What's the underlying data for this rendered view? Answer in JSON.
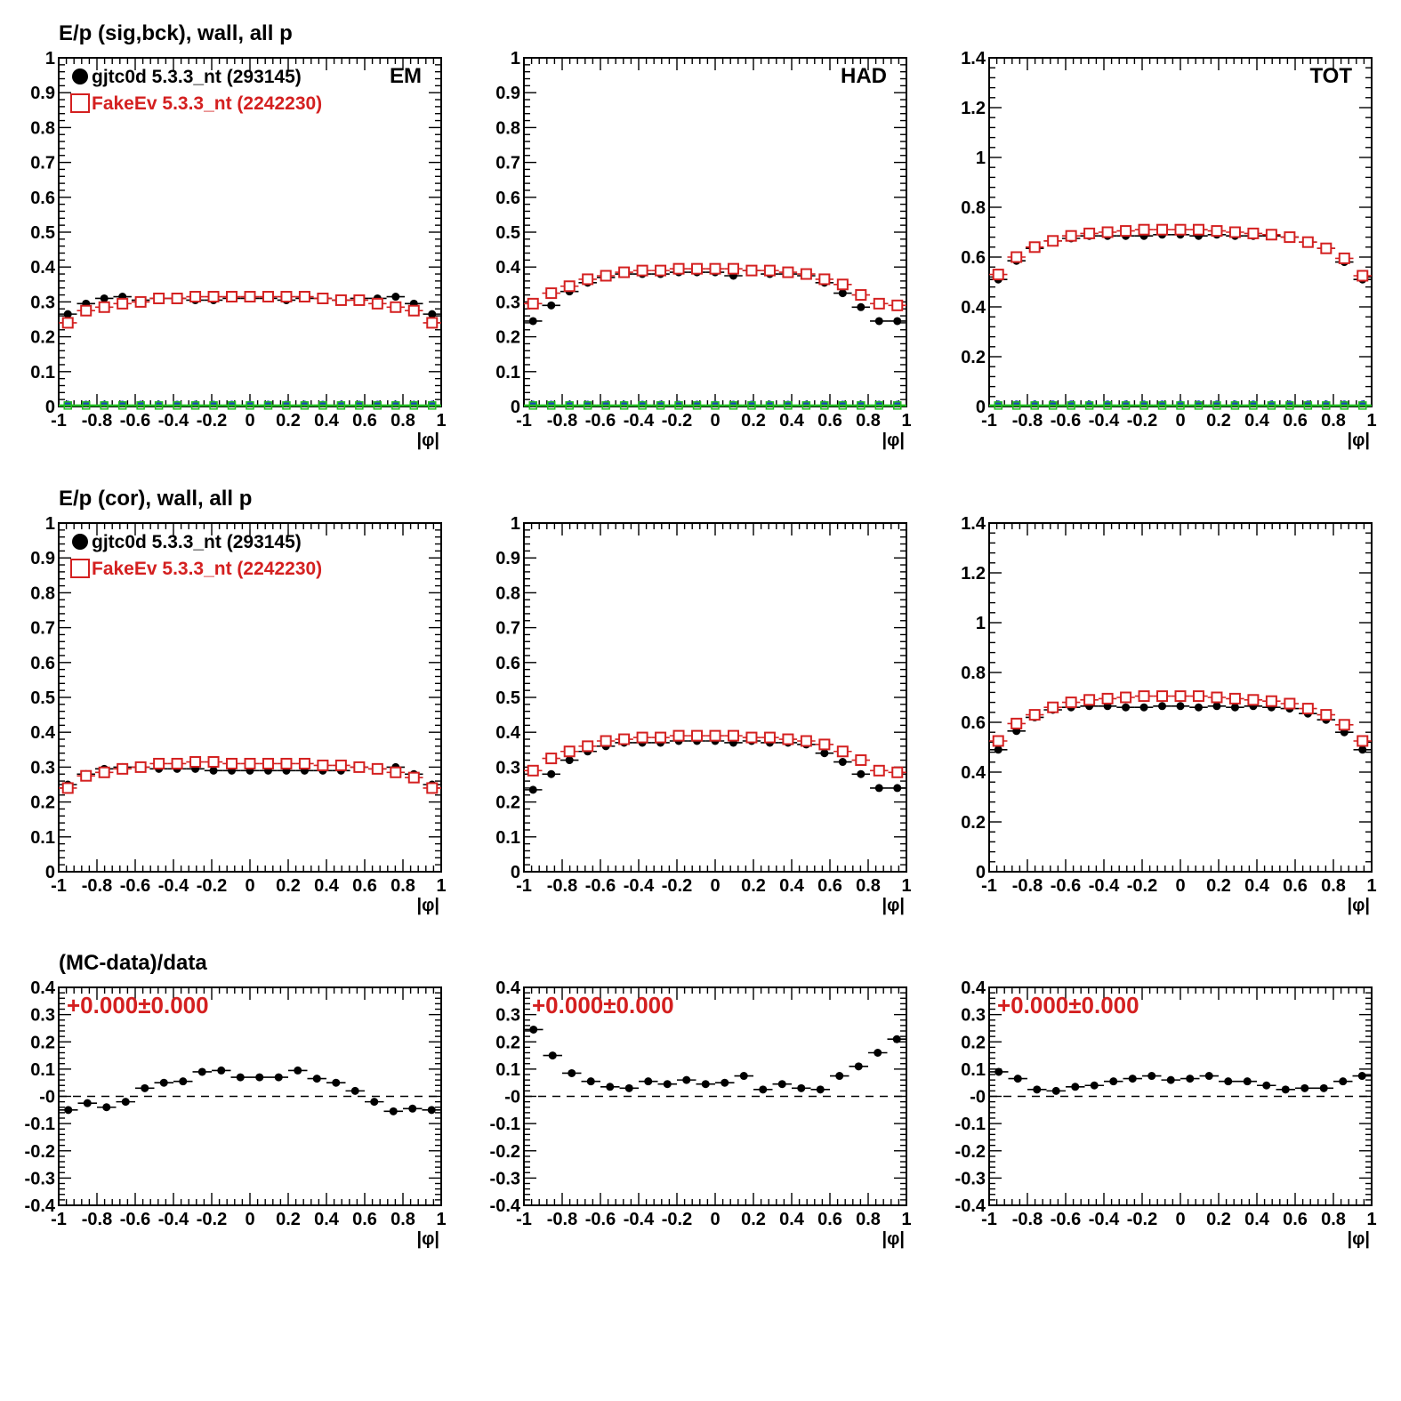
{
  "colors": {
    "data": "#000000",
    "mc": "#d42020",
    "blue": "#1f3fc8",
    "green": "#22bb22",
    "frame": "#000000"
  },
  "legend": {
    "data_label": "gjtc0d 5.3.3_nt (293145)",
    "mc_label": "FakeEv 5.3.3_nt (2242230)"
  },
  "chart_data": [
    {
      "type": "scatter",
      "row": 0,
      "col": 0,
      "title": "E/p (sig,bck), wall, all p",
      "corner": "EM",
      "legend": true,
      "xlabel": "|φ|",
      "xlim": [
        -1,
        1
      ],
      "ylim": [
        0,
        1
      ],
      "yticks": [
        0,
        0.1,
        0.2,
        0.3,
        0.4,
        0.5,
        0.6,
        0.7,
        0.8,
        0.9,
        1
      ],
      "ytick_labels": [
        "0",
        "0.1",
        "0.2",
        "0.3",
        "0.4",
        "0.5",
        "0.6",
        "0.7",
        "0.8",
        "0.9",
        "1"
      ],
      "xticks": [
        -1,
        -0.8,
        -0.6,
        -0.4,
        -0.2,
        0,
        0.2,
        0.4,
        0.6,
        0.8,
        1
      ],
      "xtick_labels": [
        "-1",
        "-0.8",
        "-0.6",
        "-0.4",
        "-0.2",
        "0",
        "0.2",
        "0.4",
        "0.6",
        "0.8",
        "1"
      ],
      "series": [
        {
          "name": "gjtc0d 5.3.3_nt (293145)",
          "marker": "dot",
          "values": [
            0.265,
            0.295,
            0.31,
            0.315,
            0.305,
            0.31,
            0.31,
            0.305,
            0.305,
            0.31,
            0.31,
            0.31,
            0.305,
            0.31,
            0.31,
            0.305,
            0.31,
            0.31,
            0.315,
            0.295,
            0.265
          ]
        },
        {
          "name": "FakeEv 5.3.3_nt (2242230)",
          "marker": "square",
          "values": [
            0.24,
            0.275,
            0.285,
            0.295,
            0.3,
            0.31,
            0.31,
            0.315,
            0.315,
            0.315,
            0.315,
            0.315,
            0.315,
            0.315,
            0.31,
            0.305,
            0.305,
            0.295,
            0.285,
            0.275,
            0.24
          ]
        },
        {
          "marker": "blue-dot",
          "values": [
            0.008,
            0.008,
            0.008,
            0.008,
            0.008,
            0.008,
            0.008,
            0.008,
            0.008,
            0.008,
            0.008,
            0.008,
            0.008,
            0.008,
            0.008,
            0.008,
            0.008,
            0.008,
            0.008,
            0.008,
            0.008
          ]
        },
        {
          "marker": "green-square",
          "values": [
            0.003,
            0.003,
            0.003,
            0.003,
            0.003,
            0.003,
            0.003,
            0.003,
            0.003,
            0.003,
            0.003,
            0.003,
            0.003,
            0.003,
            0.003,
            0.003,
            0.003,
            0.003,
            0.003,
            0.003,
            0.003
          ]
        }
      ]
    },
    {
      "type": "scatter",
      "row": 0,
      "col": 1,
      "title": "",
      "corner": "HAD",
      "legend": false,
      "xlabel": "|φ|",
      "xlim": [
        -1,
        1
      ],
      "ylim": [
        0,
        1
      ],
      "yticks": [
        0,
        0.1,
        0.2,
        0.3,
        0.4,
        0.5,
        0.6,
        0.7,
        0.8,
        0.9,
        1
      ],
      "ytick_labels": [
        "0",
        "0.1",
        "0.2",
        "0.3",
        "0.4",
        "0.5",
        "0.6",
        "0.7",
        "0.8",
        "0.9",
        "1"
      ],
      "xticks": [
        -1,
        -0.8,
        -0.6,
        -0.4,
        -0.2,
        0,
        0.2,
        0.4,
        0.6,
        0.8,
        1
      ],
      "xtick_labels": [
        "-1",
        "-0.8",
        "-0.6",
        "-0.4",
        "-0.2",
        "0",
        "0.2",
        "0.4",
        "0.6",
        "0.8",
        "1"
      ],
      "series": [
        {
          "name": "gjtc0d 5.3.3_nt (293145)",
          "marker": "dot",
          "values": [
            0.245,
            0.29,
            0.33,
            0.355,
            0.37,
            0.38,
            0.38,
            0.38,
            0.385,
            0.385,
            0.385,
            0.375,
            0.39,
            0.38,
            0.38,
            0.375,
            0.355,
            0.325,
            0.285,
            0.245,
            0.245
          ]
        },
        {
          "name": "FakeEv 5.3.3_nt (2242230)",
          "marker": "square",
          "values": [
            0.295,
            0.325,
            0.345,
            0.365,
            0.375,
            0.385,
            0.39,
            0.39,
            0.395,
            0.395,
            0.395,
            0.395,
            0.39,
            0.39,
            0.385,
            0.38,
            0.365,
            0.35,
            0.32,
            0.295,
            0.29
          ]
        },
        {
          "marker": "blue-dot",
          "values": [
            0.008,
            0.008,
            0.008,
            0.008,
            0.008,
            0.008,
            0.008,
            0.008,
            0.008,
            0.008,
            0.008,
            0.008,
            0.008,
            0.008,
            0.008,
            0.008,
            0.008,
            0.008,
            0.008,
            0.008,
            0.008
          ]
        },
        {
          "marker": "green-square",
          "values": [
            0.003,
            0.003,
            0.003,
            0.003,
            0.003,
            0.003,
            0.003,
            0.003,
            0.003,
            0.003,
            0.003,
            0.003,
            0.003,
            0.003,
            0.003,
            0.003,
            0.003,
            0.003,
            0.003,
            0.003,
            0.003
          ]
        }
      ]
    },
    {
      "type": "scatter",
      "row": 0,
      "col": 2,
      "title": "",
      "corner": "TOT",
      "legend": false,
      "xlabel": "|φ|",
      "xlim": [
        -1,
        1
      ],
      "ylim": [
        0,
        1.4
      ],
      "yticks": [
        0,
        0.2,
        0.4,
        0.6,
        0.8,
        1,
        1.2,
        1.4
      ],
      "ytick_labels": [
        "0",
        "0.2",
        "0.4",
        "0.6",
        "0.8",
        "1",
        "1.2",
        "1.4"
      ],
      "xticks": [
        -1,
        -0.8,
        -0.6,
        -0.4,
        -0.2,
        0,
        0.2,
        0.4,
        0.6,
        0.8,
        1
      ],
      "xtick_labels": [
        "-1",
        "-0.8",
        "-0.6",
        "-0.4",
        "-0.2",
        "0",
        "0.2",
        "0.4",
        "0.6",
        "0.8",
        "1"
      ],
      "series": [
        {
          "name": "gjtc0d 5.3.3_nt (293145)",
          "marker": "dot",
          "values": [
            0.51,
            0.585,
            0.635,
            0.665,
            0.675,
            0.685,
            0.685,
            0.685,
            0.685,
            0.69,
            0.69,
            0.685,
            0.69,
            0.685,
            0.685,
            0.685,
            0.68,
            0.66,
            0.635,
            0.58,
            0.51
          ]
        },
        {
          "name": "FakeEv 5.3.3_nt (2242230)",
          "marker": "square",
          "values": [
            0.53,
            0.6,
            0.64,
            0.665,
            0.685,
            0.695,
            0.7,
            0.705,
            0.71,
            0.71,
            0.71,
            0.71,
            0.705,
            0.7,
            0.695,
            0.69,
            0.68,
            0.66,
            0.635,
            0.595,
            0.525
          ]
        },
        {
          "marker": "blue-dot",
          "values": [
            0.012,
            0.012,
            0.012,
            0.012,
            0.012,
            0.012,
            0.012,
            0.012,
            0.012,
            0.012,
            0.012,
            0.012,
            0.012,
            0.012,
            0.012,
            0.012,
            0.012,
            0.012,
            0.012,
            0.012,
            0.012
          ]
        },
        {
          "marker": "green-square",
          "values": [
            0.004,
            0.004,
            0.004,
            0.004,
            0.004,
            0.004,
            0.004,
            0.004,
            0.004,
            0.004,
            0.004,
            0.004,
            0.004,
            0.004,
            0.004,
            0.004,
            0.004,
            0.004,
            0.004,
            0.004,
            0.004
          ]
        }
      ]
    },
    {
      "type": "scatter",
      "row": 1,
      "col": 0,
      "title": "E/p (cor), wall, all p",
      "corner": "",
      "legend": true,
      "xlabel": "|φ|",
      "xlim": [
        -1,
        1
      ],
      "ylim": [
        0,
        1
      ],
      "yticks": [
        0,
        0.1,
        0.2,
        0.3,
        0.4,
        0.5,
        0.6,
        0.7,
        0.8,
        0.9,
        1
      ],
      "ytick_labels": [
        "0",
        "0.1",
        "0.2",
        "0.3",
        "0.4",
        "0.5",
        "0.6",
        "0.7",
        "0.8",
        "0.9",
        "1"
      ],
      "xticks": [
        -1,
        -0.8,
        -0.6,
        -0.4,
        -0.2,
        0,
        0.2,
        0.4,
        0.6,
        0.8,
        1
      ],
      "xtick_labels": [
        "-1",
        "-0.8",
        "-0.6",
        "-0.4",
        "-0.2",
        "0",
        "0.2",
        "0.4",
        "0.6",
        "0.8",
        "1"
      ],
      "series": [
        {
          "name": "gjtc0d 5.3.3_nt (293145)",
          "marker": "dot",
          "values": [
            0.25,
            0.28,
            0.295,
            0.3,
            0.3,
            0.295,
            0.295,
            0.295,
            0.29,
            0.29,
            0.29,
            0.29,
            0.29,
            0.29,
            0.29,
            0.29,
            0.3,
            0.295,
            0.3,
            0.28,
            0.25
          ]
        },
        {
          "name": "FakeEv 5.3.3_nt (2242230)",
          "marker": "square",
          "values": [
            0.24,
            0.275,
            0.285,
            0.295,
            0.3,
            0.31,
            0.31,
            0.315,
            0.315,
            0.31,
            0.31,
            0.31,
            0.31,
            0.31,
            0.305,
            0.305,
            0.3,
            0.295,
            0.285,
            0.27,
            0.24
          ]
        }
      ]
    },
    {
      "type": "scatter",
      "row": 1,
      "col": 1,
      "title": "",
      "corner": "",
      "legend": false,
      "xlabel": "|φ|",
      "xlim": [
        -1,
        1
      ],
      "ylim": [
        0,
        1
      ],
      "yticks": [
        0,
        0.1,
        0.2,
        0.3,
        0.4,
        0.5,
        0.6,
        0.7,
        0.8,
        0.9,
        1
      ],
      "ytick_labels": [
        "0",
        "0.1",
        "0.2",
        "0.3",
        "0.4",
        "0.5",
        "0.6",
        "0.7",
        "0.8",
        "0.9",
        "1"
      ],
      "xticks": [
        -1,
        -0.8,
        -0.6,
        -0.4,
        -0.2,
        0,
        0.2,
        0.4,
        0.6,
        0.8,
        1
      ],
      "xtick_labels": [
        "-1",
        "-0.8",
        "-0.6",
        "-0.4",
        "-0.2",
        "0",
        "0.2",
        "0.4",
        "0.6",
        "0.8",
        "1"
      ],
      "series": [
        {
          "name": "gjtc0d 5.3.3_nt (293145)",
          "marker": "dot",
          "values": [
            0.235,
            0.28,
            0.32,
            0.345,
            0.36,
            0.37,
            0.37,
            0.37,
            0.375,
            0.375,
            0.375,
            0.37,
            0.375,
            0.37,
            0.37,
            0.365,
            0.34,
            0.315,
            0.28,
            0.24,
            0.24
          ]
        },
        {
          "name": "FakeEv 5.3.3_nt (2242230)",
          "marker": "square",
          "values": [
            0.29,
            0.325,
            0.345,
            0.36,
            0.375,
            0.38,
            0.385,
            0.385,
            0.39,
            0.39,
            0.39,
            0.39,
            0.385,
            0.385,
            0.38,
            0.375,
            0.365,
            0.345,
            0.32,
            0.29,
            0.285
          ]
        }
      ]
    },
    {
      "type": "scatter",
      "row": 1,
      "col": 2,
      "title": "",
      "corner": "",
      "legend": false,
      "xlabel": "|φ|",
      "xlim": [
        -1,
        1
      ],
      "ylim": [
        0,
        1.4
      ],
      "yticks": [
        0,
        0.2,
        0.4,
        0.6,
        0.8,
        1,
        1.2,
        1.4
      ],
      "ytick_labels": [
        "0",
        "0.2",
        "0.4",
        "0.6",
        "0.8",
        "1",
        "1.2",
        "1.4"
      ],
      "xticks": [
        -1,
        -0.8,
        -0.6,
        -0.4,
        -0.2,
        0,
        0.2,
        0.4,
        0.6,
        0.8,
        1
      ],
      "xtick_labels": [
        "-1",
        "-0.8",
        "-0.6",
        "-0.4",
        "-0.2",
        "0",
        "0.2",
        "0.4",
        "0.6",
        "0.8",
        "1"
      ],
      "series": [
        {
          "name": "gjtc0d 5.3.3_nt (293145)",
          "marker": "dot",
          "values": [
            0.49,
            0.565,
            0.62,
            0.65,
            0.66,
            0.665,
            0.665,
            0.66,
            0.66,
            0.665,
            0.665,
            0.66,
            0.665,
            0.66,
            0.665,
            0.66,
            0.655,
            0.635,
            0.61,
            0.56,
            0.49
          ]
        },
        {
          "name": "FakeEv 5.3.3_nt (2242230)",
          "marker": "square",
          "values": [
            0.525,
            0.595,
            0.63,
            0.66,
            0.68,
            0.69,
            0.695,
            0.7,
            0.705,
            0.705,
            0.705,
            0.705,
            0.7,
            0.695,
            0.69,
            0.685,
            0.675,
            0.655,
            0.63,
            0.59,
            0.525
          ]
        }
      ]
    },
    {
      "type": "scatter",
      "row": 2,
      "col": 0,
      "title": "(MC-data)/data",
      "corner": "",
      "legend": false,
      "ratio_label": "+0.000±0.000",
      "xlabel": "|φ|",
      "xlim": [
        -1,
        1
      ],
      "ylim": [
        -0.4,
        0.4
      ],
      "yticks": [
        -0.4,
        -0.3,
        -0.2,
        -0.1,
        0,
        0.1,
        0.2,
        0.3,
        0.4
      ],
      "ytick_labels": [
        "-0.4",
        "-0.3",
        "-0.2",
        "-0.1",
        "-0",
        "0.1",
        "0.2",
        "0.3",
        "0.4"
      ],
      "xticks": [
        -1,
        -0.8,
        -0.6,
        -0.4,
        -0.2,
        0,
        0.2,
        0.4,
        0.6,
        0.8,
        1
      ],
      "xtick_labels": [
        "-1",
        "-0.8",
        "-0.6",
        "-0.4",
        "-0.2",
        "0",
        "0.2",
        "0.4",
        "0.6",
        "0.8",
        "1"
      ],
      "zero_line": true,
      "series": [
        {
          "marker": "dot",
          "values": [
            -0.05,
            -0.025,
            -0.04,
            -0.02,
            0.03,
            0.05,
            0.055,
            0.09,
            0.095,
            0.07,
            0.07,
            0.07,
            0.095,
            0.065,
            0.05,
            0.02,
            -0.02,
            -0.055,
            -0.045,
            -0.05
          ]
        }
      ]
    },
    {
      "type": "scatter",
      "row": 2,
      "col": 1,
      "title": "",
      "corner": "",
      "legend": false,
      "ratio_label": "+0.000±0.000",
      "xlabel": "|φ|",
      "xlim": [
        -1,
        1
      ],
      "ylim": [
        -0.4,
        0.4
      ],
      "yticks": [
        -0.4,
        -0.3,
        -0.2,
        -0.1,
        0,
        0.1,
        0.2,
        0.3,
        0.4
      ],
      "ytick_labels": [
        "-0.4",
        "-0.3",
        "-0.2",
        "-0.1",
        "-0",
        "0.1",
        "0.2",
        "0.3",
        "0.4"
      ],
      "xticks": [
        -1,
        -0.8,
        -0.6,
        -0.4,
        -0.2,
        0,
        0.2,
        0.4,
        0.6,
        0.8,
        1
      ],
      "xtick_labels": [
        "-1",
        "-0.8",
        "-0.6",
        "-0.4",
        "-0.2",
        "0",
        "0.2",
        "0.4",
        "0.6",
        "0.8",
        "1"
      ],
      "zero_line": true,
      "series": [
        {
          "marker": "dot",
          "values": [
            0.245,
            0.15,
            0.085,
            0.055,
            0.035,
            0.03,
            0.055,
            0.045,
            0.06,
            0.045,
            0.05,
            0.075,
            0.025,
            0.045,
            0.03,
            0.025,
            0.075,
            0.11,
            0.16,
            0.21
          ]
        }
      ]
    },
    {
      "type": "scatter",
      "row": 2,
      "col": 2,
      "title": "",
      "corner": "",
      "legend": false,
      "ratio_label": "+0.000±0.000",
      "xlabel": "|φ|",
      "xlim": [
        -1,
        1
      ],
      "ylim": [
        -0.4,
        0.4
      ],
      "yticks": [
        -0.4,
        -0.3,
        -0.2,
        -0.1,
        0,
        0.1,
        0.2,
        0.3,
        0.4
      ],
      "ytick_labels": [
        "-0.4",
        "-0.3",
        "-0.2",
        "-0.1",
        "-0",
        "0.1",
        "0.2",
        "0.3",
        "0.4"
      ],
      "xticks": [
        -1,
        -0.8,
        -0.6,
        -0.4,
        -0.2,
        0,
        0.2,
        0.4,
        0.6,
        0.8,
        1
      ],
      "xtick_labels": [
        "-1",
        "-0.8",
        "-0.6",
        "-0.4",
        "-0.2",
        "0",
        "0.2",
        "0.4",
        "0.6",
        "0.8",
        "1"
      ],
      "zero_line": true,
      "series": [
        {
          "marker": "dot",
          "values": [
            0.09,
            0.065,
            0.025,
            0.02,
            0.035,
            0.04,
            0.055,
            0.065,
            0.075,
            0.06,
            0.065,
            0.075,
            0.055,
            0.055,
            0.04,
            0.025,
            0.03,
            0.03,
            0.055,
            0.075
          ]
        }
      ]
    }
  ]
}
